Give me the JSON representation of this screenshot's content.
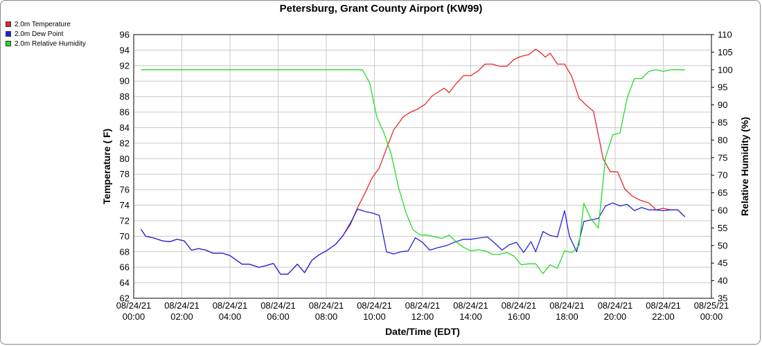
{
  "chart_data": {
    "type": "line",
    "title": "Petersburg, Grant County Airport (KW99)",
    "xlabel": "Date/Time (EDT)",
    "ylabel": "Temperature ( F)",
    "y2label": "Relative Humidity (%)",
    "ylim": [
      62,
      96
    ],
    "y2lim": [
      35,
      110
    ],
    "grid": true,
    "legend_position": "top-left",
    "x_ticks": [
      {
        "date": "08/24/21",
        "time": "00:00",
        "hour": 0
      },
      {
        "date": "08/24/21",
        "time": "02:00",
        "hour": 2
      },
      {
        "date": "08/24/21",
        "time": "04:00",
        "hour": 4
      },
      {
        "date": "08/24/21",
        "time": "06:00",
        "hour": 6
      },
      {
        "date": "08/24/21",
        "time": "08:00",
        "hour": 8
      },
      {
        "date": "08/24/21",
        "time": "10:00",
        "hour": 10
      },
      {
        "date": "08/24/21",
        "time": "12:00",
        "hour": 12
      },
      {
        "date": "08/24/21",
        "time": "14:00",
        "hour": 14
      },
      {
        "date": "08/24/21",
        "time": "16:00",
        "hour": 16
      },
      {
        "date": "08/24/21",
        "time": "18:00",
        "hour": 18
      },
      {
        "date": "08/24/21",
        "time": "20:00",
        "hour": 20
      },
      {
        "date": "08/24/21",
        "time": "22:00",
        "hour": 22
      },
      {
        "date": "08/25/21",
        "time": "00:00",
        "hour": 24
      }
    ],
    "y_ticks": [
      62,
      64,
      66,
      68,
      70,
      72,
      74,
      76,
      78,
      80,
      82,
      84,
      86,
      88,
      90,
      92,
      94,
      96
    ],
    "y2_ticks": [
      35,
      40,
      45,
      50,
      55,
      60,
      65,
      70,
      75,
      80,
      85,
      90,
      95,
      100,
      105,
      110
    ],
    "series": [
      {
        "name": "2.0m Temperature",
        "color": "#e8262a",
        "axis": "left",
        "points": [
          [
            0.3,
            70.9
          ],
          [
            0.5,
            70.0
          ],
          [
            0.8,
            69.8
          ],
          [
            1.2,
            69.4
          ],
          [
            1.5,
            69.3
          ],
          [
            1.8,
            69.6
          ],
          [
            2.1,
            69.4
          ],
          [
            2.4,
            68.2
          ],
          [
            2.7,
            68.4
          ],
          [
            3.0,
            68.2
          ],
          [
            3.3,
            67.8
          ],
          [
            3.7,
            67.8
          ],
          [
            4.0,
            67.5
          ],
          [
            4.5,
            66.4
          ],
          [
            4.8,
            66.4
          ],
          [
            5.2,
            66.0
          ],
          [
            5.5,
            66.2
          ],
          [
            5.8,
            66.5
          ],
          [
            6.1,
            65.1
          ],
          [
            6.4,
            65.1
          ],
          [
            6.8,
            66.4
          ],
          [
            7.1,
            65.3
          ],
          [
            7.4,
            66.9
          ],
          [
            7.7,
            67.6
          ],
          [
            8.0,
            68.1
          ],
          [
            8.4,
            69.0
          ],
          [
            8.7,
            70.1
          ],
          [
            9.0,
            71.5
          ],
          [
            9.3,
            73.7
          ],
          [
            9.6,
            75.5
          ],
          [
            9.9,
            77.5
          ],
          [
            10.2,
            78.8
          ],
          [
            10.5,
            81.3
          ],
          [
            10.8,
            83.7
          ],
          [
            11.2,
            85.4
          ],
          [
            11.5,
            86.0
          ],
          [
            11.8,
            86.4
          ],
          [
            12.1,
            87.0
          ],
          [
            12.4,
            88.1
          ],
          [
            12.6,
            88.5
          ],
          [
            12.9,
            89.1
          ],
          [
            13.1,
            88.5
          ],
          [
            13.4,
            89.7
          ],
          [
            13.7,
            90.7
          ],
          [
            14.0,
            90.7
          ],
          [
            14.3,
            91.3
          ],
          [
            14.6,
            92.2
          ],
          [
            14.9,
            92.2
          ],
          [
            15.2,
            91.9
          ],
          [
            15.5,
            91.9
          ],
          [
            15.8,
            92.8
          ],
          [
            16.1,
            93.2
          ],
          [
            16.4,
            93.4
          ],
          [
            16.7,
            94.1
          ],
          [
            16.9,
            93.7
          ],
          [
            17.1,
            93.1
          ],
          [
            17.3,
            93.6
          ],
          [
            17.6,
            92.2
          ],
          [
            17.9,
            92.2
          ],
          [
            18.2,
            90.6
          ],
          [
            18.5,
            87.8
          ],
          [
            18.8,
            86.9
          ],
          [
            19.1,
            86.1
          ],
          [
            19.3,
            83.1
          ],
          [
            19.5,
            80.0
          ],
          [
            19.8,
            78.3
          ],
          [
            20.1,
            78.3
          ],
          [
            20.4,
            76.1
          ],
          [
            20.7,
            75.2
          ],
          [
            21.0,
            74.7
          ],
          [
            21.4,
            74.3
          ],
          [
            21.7,
            73.4
          ],
          [
            22.0,
            73.6
          ],
          [
            22.3,
            73.4
          ],
          [
            22.6,
            73.4
          ],
          [
            22.9,
            72.5
          ]
        ]
      },
      {
        "name": "2.0m Dew Point",
        "color": "#2222dd",
        "axis": "left",
        "points": [
          [
            0.3,
            70.9
          ],
          [
            0.5,
            70.0
          ],
          [
            0.8,
            69.8
          ],
          [
            1.2,
            69.4
          ],
          [
            1.5,
            69.3
          ],
          [
            1.8,
            69.6
          ],
          [
            2.1,
            69.4
          ],
          [
            2.4,
            68.2
          ],
          [
            2.7,
            68.4
          ],
          [
            3.0,
            68.2
          ],
          [
            3.3,
            67.8
          ],
          [
            3.7,
            67.8
          ],
          [
            4.0,
            67.5
          ],
          [
            4.5,
            66.4
          ],
          [
            4.8,
            66.4
          ],
          [
            5.2,
            66.0
          ],
          [
            5.5,
            66.2
          ],
          [
            5.8,
            66.5
          ],
          [
            6.1,
            65.1
          ],
          [
            6.4,
            65.1
          ],
          [
            6.8,
            66.4
          ],
          [
            7.1,
            65.3
          ],
          [
            7.4,
            66.9
          ],
          [
            7.7,
            67.6
          ],
          [
            8.0,
            68.1
          ],
          [
            8.4,
            69.0
          ],
          [
            8.7,
            70.1
          ],
          [
            9.0,
            71.7
          ],
          [
            9.3,
            73.5
          ],
          [
            9.6,
            73.2
          ],
          [
            9.9,
            73.0
          ],
          [
            10.2,
            72.7
          ],
          [
            10.5,
            68.0
          ],
          [
            10.8,
            67.7
          ],
          [
            11.1,
            68.0
          ],
          [
            11.4,
            68.1
          ],
          [
            11.7,
            69.8
          ],
          [
            12.0,
            69.2
          ],
          [
            12.3,
            68.2
          ],
          [
            12.6,
            68.5
          ],
          [
            13.0,
            68.8
          ],
          [
            13.3,
            69.2
          ],
          [
            13.7,
            69.6
          ],
          [
            14.0,
            69.6
          ],
          [
            14.4,
            69.8
          ],
          [
            14.7,
            69.9
          ],
          [
            15.0,
            69.1
          ],
          [
            15.3,
            68.2
          ],
          [
            15.6,
            68.9
          ],
          [
            15.9,
            69.2
          ],
          [
            16.2,
            67.9
          ],
          [
            16.5,
            69.3
          ],
          [
            16.7,
            68.0
          ],
          [
            17.0,
            70.6
          ],
          [
            17.3,
            70.1
          ],
          [
            17.6,
            69.9
          ],
          [
            17.9,
            73.3
          ],
          [
            18.1,
            70.0
          ],
          [
            18.4,
            68.0
          ],
          [
            18.7,
            71.9
          ],
          [
            19.0,
            72.1
          ],
          [
            19.3,
            72.3
          ],
          [
            19.6,
            73.9
          ],
          [
            19.9,
            74.3
          ],
          [
            20.2,
            73.9
          ],
          [
            20.5,
            74.1
          ],
          [
            20.8,
            73.3
          ],
          [
            21.1,
            73.7
          ],
          [
            21.4,
            73.4
          ],
          [
            21.7,
            73.4
          ],
          [
            22.0,
            73.3
          ],
          [
            22.3,
            73.4
          ],
          [
            22.6,
            73.4
          ],
          [
            22.9,
            72.5
          ]
        ]
      },
      {
        "name": "2.0m Relative Humidity",
        "color": "#22dd22",
        "axis": "right",
        "points": [
          [
            0.3,
            100
          ],
          [
            9.5,
            100
          ],
          [
            9.8,
            96.3
          ],
          [
            10.1,
            86.5
          ],
          [
            10.4,
            82.0
          ],
          [
            10.7,
            76.0
          ],
          [
            11.0,
            66.5
          ],
          [
            11.3,
            59.5
          ],
          [
            11.6,
            54.5
          ],
          [
            11.9,
            53.0
          ],
          [
            12.2,
            53.0
          ],
          [
            12.5,
            52.5
          ],
          [
            12.8,
            52.0
          ],
          [
            13.1,
            53.0
          ],
          [
            13.4,
            51.0
          ],
          [
            13.7,
            49.5
          ],
          [
            14.0,
            48.5
          ],
          [
            14.3,
            48.8
          ],
          [
            14.6,
            48.5
          ],
          [
            14.9,
            47.5
          ],
          [
            15.2,
            47.5
          ],
          [
            15.5,
            48.0
          ],
          [
            15.8,
            47.0
          ],
          [
            16.1,
            44.5
          ],
          [
            16.4,
            44.8
          ],
          [
            16.7,
            44.8
          ],
          [
            17.0,
            42.0
          ],
          [
            17.3,
            44.5
          ],
          [
            17.6,
            43.5
          ],
          [
            17.9,
            48.5
          ],
          [
            18.2,
            48.0
          ],
          [
            18.5,
            50.0
          ],
          [
            18.7,
            62.0
          ],
          [
            19.0,
            57.5
          ],
          [
            19.3,
            55.0
          ],
          [
            19.6,
            75.0
          ],
          [
            19.9,
            81.5
          ],
          [
            20.2,
            82.0
          ],
          [
            20.5,
            92.0
          ],
          [
            20.8,
            97.5
          ],
          [
            21.1,
            97.5
          ],
          [
            21.4,
            99.5
          ],
          [
            21.7,
            100
          ],
          [
            22.0,
            99.5
          ],
          [
            22.3,
            100
          ],
          [
            22.6,
            100
          ],
          [
            22.9,
            100
          ]
        ]
      }
    ]
  }
}
